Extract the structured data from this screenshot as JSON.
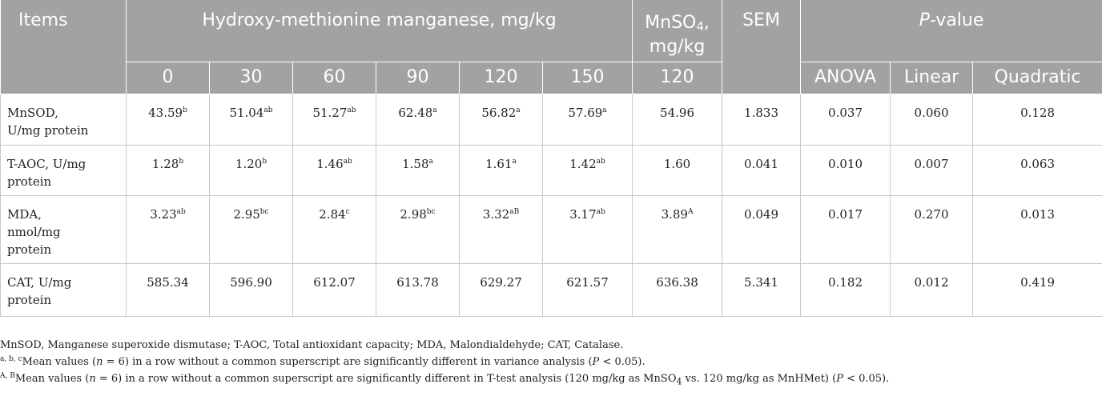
{
  "header": {
    "items": "Items",
    "group": "Hydroxy-methionine manganese, mg/kg",
    "mnso4_pre": "MnSO",
    "mnso4_sub": "4",
    "mnso4_post": ",",
    "mnso4_unit": "mg/kg",
    "sem": "SEM",
    "pvalue_italic": "P",
    "pvalue_rest": "-value",
    "doses": [
      "0",
      "30",
      "60",
      "90",
      "120",
      "150"
    ],
    "mnso4_dose": "120",
    "tests": [
      "ANOVA",
      "Linear",
      "Quadratic"
    ]
  },
  "rows": [
    {
      "label": [
        "MnSOD,",
        "U/mg protein"
      ],
      "cells": [
        {
          "v": "43.59",
          "s": "b"
        },
        {
          "v": "51.04",
          "s": "ab"
        },
        {
          "v": "51.27",
          "s": "ab"
        },
        {
          "v": "62.48",
          "s": "a"
        },
        {
          "v": "56.82",
          "s": "a"
        },
        {
          "v": "57.69",
          "s": "a"
        },
        {
          "v": "54.96",
          "s": ""
        }
      ],
      "sem": "1.833",
      "anova": "0.037",
      "linear": "0.060",
      "quadratic": "0.128"
    },
    {
      "label": [
        "T-AOC, U/mg",
        "protein"
      ],
      "cells": [
        {
          "v": "1.28",
          "s": "b"
        },
        {
          "v": "1.20",
          "s": "b"
        },
        {
          "v": "1.46",
          "s": "ab"
        },
        {
          "v": "1.58",
          "s": "a"
        },
        {
          "v": "1.61",
          "s": "a"
        },
        {
          "v": "1.42",
          "s": "ab"
        },
        {
          "v": "1.60",
          "s": ""
        }
      ],
      "sem": "0.041",
      "anova": "0.010",
      "linear": "0.007",
      "quadratic": "0.063"
    },
    {
      "label": [
        "MDA,",
        "nmol/mg",
        "protein"
      ],
      "cells": [
        {
          "v": "3.23",
          "s": "ab"
        },
        {
          "v": "2.95",
          "s": "bc"
        },
        {
          "v": "2.84",
          "s": "c"
        },
        {
          "v": "2.98",
          "s": "bc"
        },
        {
          "v": "3.32",
          "s": "aB"
        },
        {
          "v": "3.17",
          "s": "ab"
        },
        {
          "v": "3.89",
          "s": "A"
        }
      ],
      "sem": "0.049",
      "anova": "0.017",
      "linear": "0.270",
      "quadratic": "0.013"
    },
    {
      "label": [
        "CAT, U/mg",
        "protein"
      ],
      "cells": [
        {
          "v": "585.34",
          "s": ""
        },
        {
          "v": "596.90",
          "s": ""
        },
        {
          "v": "612.07",
          "s": ""
        },
        {
          "v": "613.78",
          "s": ""
        },
        {
          "v": "629.27",
          "s": ""
        },
        {
          "v": "621.57",
          "s": ""
        },
        {
          "v": "636.38",
          "s": ""
        }
      ],
      "sem": "5.341",
      "anova": "0.182",
      "linear": "0.012",
      "quadratic": "0.419"
    }
  ],
  "notes": {
    "abbrev": "MnSOD, Manganese superoxide dismutase; T-AOC, Total antioxidant capacity; MDA, Malondialdehyde; CAT, Catalase.",
    "n1_sup": "a, b, c",
    "n1_pre": "Mean values (",
    "n1_n": "n",
    "n1_mid": " = 6) in a row without a common superscript are significantly different in variance analysis (",
    "n1_p": "P",
    "n1_end": " < 0.05).",
    "n2_sup": "A, B",
    "n2_pre": "Mean values (",
    "n2_n": "n",
    "n2_mid1": " = 6) in a row without a common superscript are significantly different in T-test analysis (120 mg/kg as MnSO",
    "n2_sub": "4",
    "n2_mid2": " vs. 120 mg/kg as MnHMet) (",
    "n2_p": "P",
    "n2_end": " < 0.05)."
  }
}
